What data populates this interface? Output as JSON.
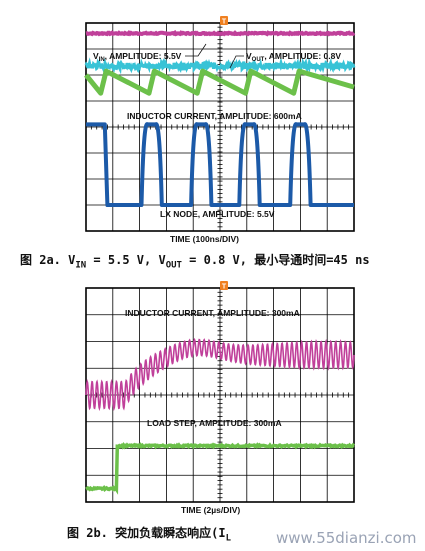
{
  "colors": {
    "vin": "#c0409a",
    "vout": "#38c3d6",
    "inductor": "#6cc04a",
    "lx": "#1c5aa8",
    "grid": "#000000",
    "trigger": "#f08020"
  },
  "trigger_marker": "T",
  "chart_data": [
    {
      "type": "line",
      "title": "",
      "xlabel": "TIME (100ns/DIV)",
      "caption_parts": {
        "prefix": "图 2a. V",
        "sub_in": "IN",
        "mid1": " = 5.5 V, V",
        "sub_out": "OUT",
        "mid2": " = 0.8 V, 最小导通时间=45 ns"
      },
      "x_range_div": [
        0,
        10
      ],
      "grid": true,
      "series": [
        {
          "name": "VIN, AMPLITUDE: 5.5V",
          "label_main": "V",
          "label_sub": "IN",
          "label_rest": ", AMPLITUDE: 5.5V",
          "level_div": 7.6,
          "noise_div": 0.05
        },
        {
          "name": "VOUT, AMPLITUDE: 0.8V",
          "label_main": "V",
          "label_sub": "OUT",
          "label_rest": ", AMPLITUDE: 0.8V",
          "level_div": 6.35,
          "noise_div": 0.12
        },
        {
          "name": "INDUCTOR CURRENT, AMPLITUDE: 600mA",
          "label": "INDUCTOR CURRENT, AMPLITUDE: 600mA",
          "valley_div": 5.3,
          "peak_div": 6.15,
          "rise_at_div": [
            0.55,
            2.35,
            4.15,
            5.95,
            7.75
          ],
          "rise_width_div": 0.2
        },
        {
          "name": "LX NODE, AMPLITUDE: 5.5V",
          "label": "LX NODE, AMPLITUDE: 5.5V",
          "low_div": 1.0,
          "high_div": 4.1,
          "pulse_start_div": [
            0.15,
            2.15,
            4.0,
            5.8,
            7.7
          ],
          "pulse_width_div": 0.6
        }
      ]
    },
    {
      "type": "line",
      "title": "",
      "xlabel": "TIME (2µs/DIV)",
      "caption_parts": {
        "prefix": "图 2b. 突加负载瞬态响应(I",
        "sub": "L",
        "rest": ""
      },
      "x_range_div": [
        0,
        10
      ],
      "grid": true,
      "series": [
        {
          "name": "INDUCTOR CURRENT, AMPLITUDE: 300mA",
          "label": "INDUCTOR CURRENT, AMPLITUDE: 300mA",
          "base_div": 4.0,
          "settled_div": 5.5,
          "step_at_div": 1.45,
          "ripple_div": 0.5,
          "cycles": 55
        },
        {
          "name": "LOAD STEP, AMPLITUDE: 300mA",
          "label": "LOAD STEP, AMPLITUDE: 300mA",
          "low_div": 0.5,
          "high_div": 2.1,
          "step_at_div": 1.1
        }
      ]
    }
  ],
  "watermark": "www.55dianzi.com"
}
